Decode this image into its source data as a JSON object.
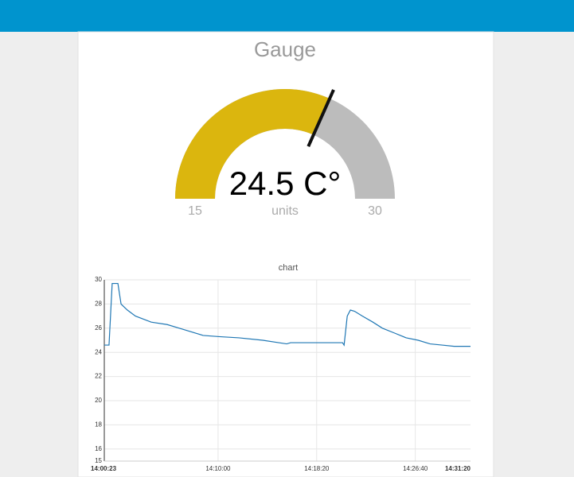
{
  "chart_data": [
    {
      "type": "gauge",
      "title": "Gauge",
      "values": [
        24.5
      ],
      "value_labels": [
        "24.5 C°"
      ],
      "units": "units",
      "ylim": [
        15,
        30
      ],
      "yticks": [
        15,
        30
      ],
      "color": "#dbb60e",
      "track_color": "#bcbcbc"
    },
    {
      "type": "line",
      "title": "chart",
      "color": "#1f77b4",
      "grid": true,
      "x": [
        "14:00:23",
        "14:00:47",
        "14:01:03",
        "14:01:32",
        "14:01:48",
        "14:02:20",
        "14:03:01",
        "14:04:21",
        "14:05:42",
        "14:06:43",
        "14:07:43",
        "14:08:44",
        "14:10:05",
        "14:11:46",
        "14:13:47",
        "14:15:08",
        "14:15:48",
        "14:16:08",
        "14:20:31",
        "14:20:39",
        "14:20:55",
        "14:21:11",
        "14:21:32",
        "14:22:12",
        "14:23:05",
        "14:23:53",
        "14:24:54",
        "14:25:54",
        "14:26:55",
        "14:27:55",
        "14:28:56",
        "14:29:57",
        "14:31:20"
      ],
      "values": [
        24.6,
        24.6,
        29.7,
        29.7,
        28,
        27.5,
        27,
        26.5,
        26.3,
        26,
        25.7,
        25.4,
        25.3,
        25.2,
        25,
        24.8,
        24.7,
        24.8,
        24.8,
        24.6,
        27,
        27.5,
        27.4,
        27,
        26.5,
        26,
        25.6,
        25.2,
        25,
        24.7,
        24.6,
        24.5,
        24.5
      ],
      "xlim": [
        "14:00:23",
        "14:31:20"
      ],
      "xticks": [
        "14:00:23",
        "14:10:00",
        "14:18:20",
        "14:26:40",
        "14:31:20"
      ],
      "ylim": [
        15,
        30
      ],
      "yticks": [
        15,
        16,
        18,
        20,
        22,
        24,
        26,
        28,
        30
      ]
    }
  ]
}
